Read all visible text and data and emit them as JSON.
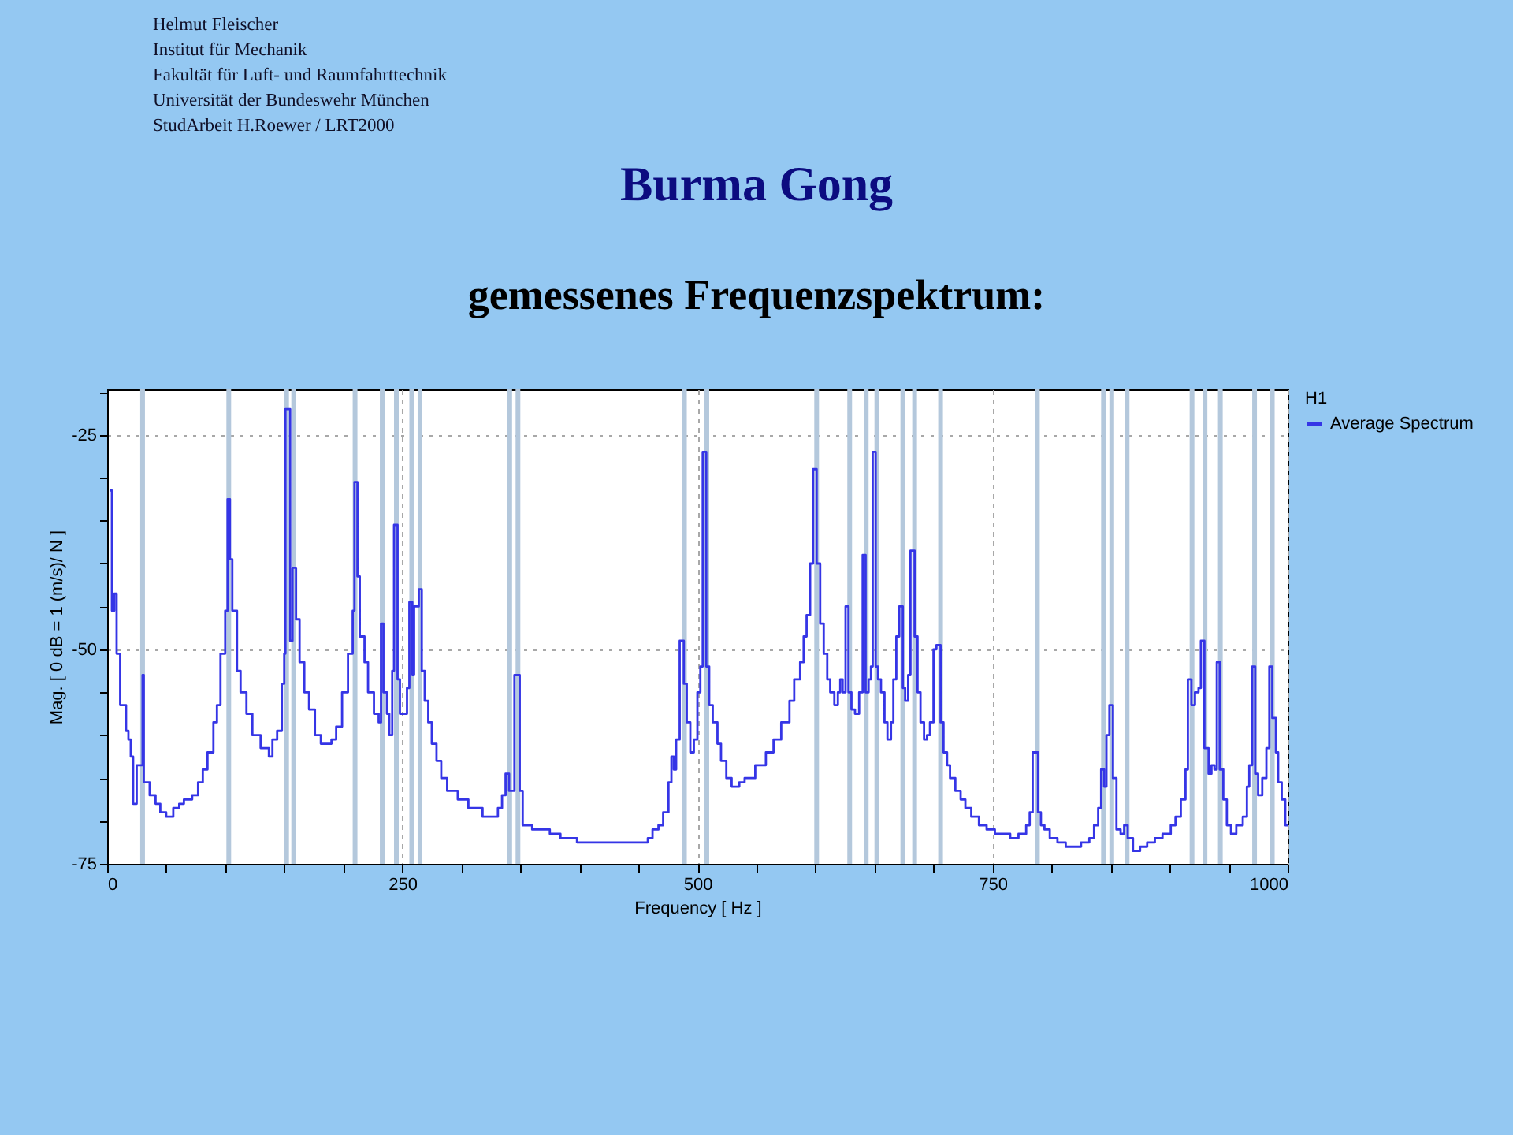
{
  "chart_data": {
    "type": "step",
    "title": "Burma Gong",
    "subtitle": "gemessenes Frequenzspektrum:",
    "xlabel": "Frequency [ Hz ]",
    "ylabel": "Mag. [ 0 dB = 1 (m/s)/ N ]",
    "legend_title": "H1",
    "legend": "right",
    "grid": true,
    "annotations": [
      "Helmut Fleischer",
      "Institut für Mechanik",
      "Fakultät für Luft- und Raumfahrttechnik",
      "Universität der Bundeswehr München",
      "StudArbeit H.Roewer / LRT2000"
    ],
    "xlim": [
      0,
      1000
    ],
    "ylim": [
      -75,
      -19.7
    ],
    "xticks": [
      0,
      {
        "value": 50,
        "label": null
      },
      {
        "value": 100,
        "label": null
      },
      {
        "value": 150,
        "label": null
      },
      {
        "value": 200,
        "label": null
      },
      250,
      {
        "value": 300,
        "label": null
      },
      {
        "value": 350,
        "label": null
      },
      {
        "value": 400,
        "label": null
      },
      {
        "value": 450,
        "label": null
      },
      500,
      {
        "value": 550,
        "label": null
      },
      {
        "value": 600,
        "label": null
      },
      {
        "value": 650,
        "label": null
      },
      {
        "value": 700,
        "label": null
      },
      750,
      {
        "value": 800,
        "label": null
      },
      {
        "value": 850,
        "label": null
      },
      {
        "value": 900,
        "label": null
      },
      {
        "value": 950,
        "label": null
      },
      1000
    ],
    "yticks": [
      -75,
      {
        "value": -70,
        "label": null
      },
      {
        "value": -65,
        "label": null
      },
      {
        "value": -60,
        "label": null
      },
      {
        "value": -55,
        "label": null
      },
      -50,
      {
        "value": -45,
        "label": null
      },
      {
        "value": -40,
        "label": null
      },
      {
        "value": -35,
        "label": null
      },
      {
        "value": -30,
        "label": null
      },
      -25,
      {
        "value": -20,
        "label": null
      }
    ],
    "ref_lines": [
      {
        "axis": "x",
        "value": 30,
        "color": "#b4c8dc"
      },
      {
        "axis": "x",
        "value": 103,
        "color": "#b4c8dc"
      },
      {
        "axis": "x",
        "value": 152,
        "color": "#b4c8dc"
      },
      {
        "axis": "x",
        "value": 158,
        "color": "#b4c8dc"
      },
      {
        "axis": "x",
        "value": 210,
        "color": "#b4c8dc"
      },
      {
        "axis": "x",
        "value": 233,
        "color": "#b4c8dc"
      },
      {
        "axis": "x",
        "value": 245,
        "color": "#b4c8dc"
      },
      {
        "axis": "x",
        "value": 258,
        "color": "#b4c8dc"
      },
      {
        "axis": "x",
        "value": 265,
        "color": "#b4c8dc"
      },
      {
        "axis": "x",
        "value": 341,
        "color": "#b4c8dc"
      },
      {
        "axis": "x",
        "value": 348,
        "color": "#b4c8dc"
      },
      {
        "axis": "x",
        "value": 489,
        "color": "#b4c8dc"
      },
      {
        "axis": "x",
        "value": 508,
        "color": "#b4c8dc"
      },
      {
        "axis": "x",
        "value": 601,
        "color": "#b4c8dc"
      },
      {
        "axis": "x",
        "value": 629,
        "color": "#b4c8dc"
      },
      {
        "axis": "x",
        "value": 643,
        "color": "#b4c8dc"
      },
      {
        "axis": "x",
        "value": 652,
        "color": "#b4c8dc"
      },
      {
        "axis": "x",
        "value": 674,
        "color": "#b4c8dc"
      },
      {
        "axis": "x",
        "value": 684,
        "color": "#b4c8dc"
      },
      {
        "axis": "x",
        "value": 706,
        "color": "#b4c8dc"
      },
      {
        "axis": "x",
        "value": 788,
        "color": "#b4c8dc"
      },
      {
        "axis": "x",
        "value": 844,
        "color": "#b4c8dc"
      },
      {
        "axis": "x",
        "value": 851,
        "color": "#b4c8dc"
      },
      {
        "axis": "x",
        "value": 864,
        "color": "#b4c8dc"
      },
      {
        "axis": "x",
        "value": 919,
        "color": "#b4c8dc"
      },
      {
        "axis": "x",
        "value": 930,
        "color": "#b4c8dc"
      },
      {
        "axis": "x",
        "value": 943,
        "color": "#b4c8dc"
      },
      {
        "axis": "x",
        "value": 972,
        "color": "#b4c8dc"
      },
      {
        "axis": "x",
        "value": 987,
        "color": "#b4c8dc"
      }
    ],
    "x": [
      2,
      4,
      6,
      8,
      11,
      16,
      18,
      20,
      22,
      25,
      30,
      31,
      36,
      41,
      45,
      50,
      56,
      61,
      65,
      72,
      77,
      81,
      85,
      90,
      93,
      96,
      100,
      102,
      104,
      106,
      110,
      113,
      118,
      123,
      130,
      137,
      140,
      144,
      148,
      150,
      151,
      155,
      157,
      160,
      163,
      167,
      171,
      176,
      181,
      190,
      194,
      199,
      204,
      208,
      209.5,
      212,
      214,
      218,
      221,
      226,
      230,
      232,
      234,
      237,
      239,
      241.5,
      243,
      246,
      248,
      254,
      256,
      258.5,
      260,
      264,
      266.5,
      269,
      272,
      275,
      279,
      283,
      288,
      297,
      306,
      318,
      331,
      334.5,
      337.5,
      340.5,
      345,
      349.5,
      352,
      360,
      375,
      384,
      398,
      458,
      462,
      467,
      471,
      475.5,
      478,
      480,
      482,
      485,
      488.5,
      491,
      494,
      497,
      500,
      502.5,
      504.5,
      507.5,
      510,
      513,
      517,
      520,
      524.5,
      529,
      535.5,
      540,
      549,
      558,
      564.5,
      571,
      578,
      582,
      587,
      590,
      592.5,
      595.5,
      598,
      601,
      604,
      607,
      610,
      612.5,
      616,
      619,
      621,
      623,
      625.5,
      628,
      630.5,
      633.5,
      637,
      640,
      642.5,
      645,
      647,
      648.5,
      651,
      653,
      655.5,
      658.5,
      661,
      664,
      666,
      668.5,
      671,
      674,
      676,
      678.5,
      680.5,
      684,
      686.5,
      689,
      692,
      694.5,
      697,
      700,
      702.5,
      706,
      708.5,
      711.5,
      714,
      718.5,
      723,
      727,
      732,
      738.5,
      745,
      752,
      765,
      772,
      778.5,
      781.5,
      784,
      788.5,
      791,
      794,
      798.5,
      805,
      812,
      825,
      832,
      836,
      839.5,
      842,
      844.5,
      846.5,
      849,
      852,
      855,
      858.5,
      861.5,
      864.5,
      869,
      875,
      881,
      887.5,
      894,
      901,
      905,
      909.5,
      913.5,
      915.5,
      918.5,
      921.5,
      924.5,
      926.5,
      929.5,
      933,
      935.5,
      938,
      940,
      942.5,
      945.5,
      948.5,
      952,
      956.5,
      962,
      965.5,
      967.5,
      970,
      972.5,
      975,
      978.5,
      982,
      984.5,
      987,
      990,
      992,
      995,
      998,
      1000
    ],
    "series": [
      {
        "name": "Average Spectrum",
        "color": "#3535e6",
        "values": [
          -31.5,
          -45.5,
          -43.5,
          -50.5,
          -56.5,
          -59.5,
          -60.5,
          -62.5,
          -68,
          -63.5,
          -53,
          -65.5,
          -67,
          -68,
          -69,
          -69.5,
          -68.5,
          -68,
          -67.5,
          -67,
          -65.5,
          -64,
          -62,
          -58.5,
          -56.5,
          -50.5,
          -45.5,
          -32.5,
          -39.5,
          -45.5,
          -52.5,
          -55,
          -57.5,
          -60,
          -61.5,
          -62.5,
          -60.5,
          -59.5,
          -54,
          -50.5,
          -22,
          -49,
          -40.5,
          -46.5,
          -51.5,
          -55,
          -57,
          -60,
          -61,
          -60.5,
          -59,
          -55,
          -50.5,
          -45.5,
          -30.5,
          -41.5,
          -48.5,
          -51.5,
          -55,
          -57.5,
          -58.5,
          -47,
          -55,
          -57.5,
          -60,
          -52.5,
          -35.5,
          -53.5,
          -57.5,
          -54.5,
          -44.5,
          -53,
          -45,
          -43,
          -52.5,
          -56,
          -58.5,
          -61,
          -63,
          -65,
          -66.5,
          -67.5,
          -68.5,
          -69.5,
          -68.5,
          -67,
          -64.5,
          -66.5,
          -53,
          -66.5,
          -70.5,
          -71,
          -71.5,
          -72,
          -72.5,
          -72,
          -71,
          -70.5,
          -69,
          -65.5,
          -62.5,
          -64,
          -60.5,
          -49,
          -54,
          -58.5,
          -62,
          -60.5,
          -55,
          -52,
          -27,
          -52,
          -56.5,
          -58.5,
          -61,
          -63,
          -65,
          -66,
          -65.5,
          -65,
          -63.5,
          -62,
          -60.5,
          -58.5,
          -56,
          -53.5,
          -51.5,
          -48.5,
          -46,
          -40,
          -29,
          -40,
          -47,
          -50.5,
          -53.5,
          -55,
          -56.5,
          -55,
          -53.5,
          -55,
          -45,
          -55,
          -57,
          -57.5,
          -55,
          -39,
          -55,
          -53.5,
          -52,
          -27,
          -52,
          -53.5,
          -55,
          -58.5,
          -60.5,
          -58.5,
          -53.5,
          -48.5,
          -45,
          -54.5,
          -56,
          -53,
          -38.5,
          -48.5,
          -55,
          -58.5,
          -60.5,
          -60,
          -58.5,
          -50,
          -49.5,
          -58.5,
          -62,
          -63.5,
          -65,
          -66.5,
          -67.5,
          -68.5,
          -69.5,
          -70.5,
          -71,
          -71.5,
          -72,
          -71.5,
          -70.5,
          -69,
          -62,
          -69,
          -70.5,
          -71,
          -72,
          -72.5,
          -73,
          -72.5,
          -72,
          -70.5,
          -68.5,
          -64,
          -66,
          -60,
          -56.5,
          -65,
          -71,
          -71.5,
          -70.5,
          -72,
          -73.5,
          -73,
          -72.5,
          -72,
          -71.5,
          -70.5,
          -69.5,
          -67.5,
          -64,
          -53.5,
          -56.5,
          -55,
          -54.5,
          -49,
          -61.5,
          -64.5,
          -63.5,
          -64,
          -51.5,
          -64,
          -67.5,
          -70.5,
          -71.5,
          -70.5,
          -69.5,
          -66,
          -63.5,
          -52,
          -64.5,
          -67,
          -65,
          -61.5,
          -52,
          -58,
          -62,
          -65.5,
          -67.5,
          -70.5,
          -70.5
        ]
      }
    ]
  }
}
